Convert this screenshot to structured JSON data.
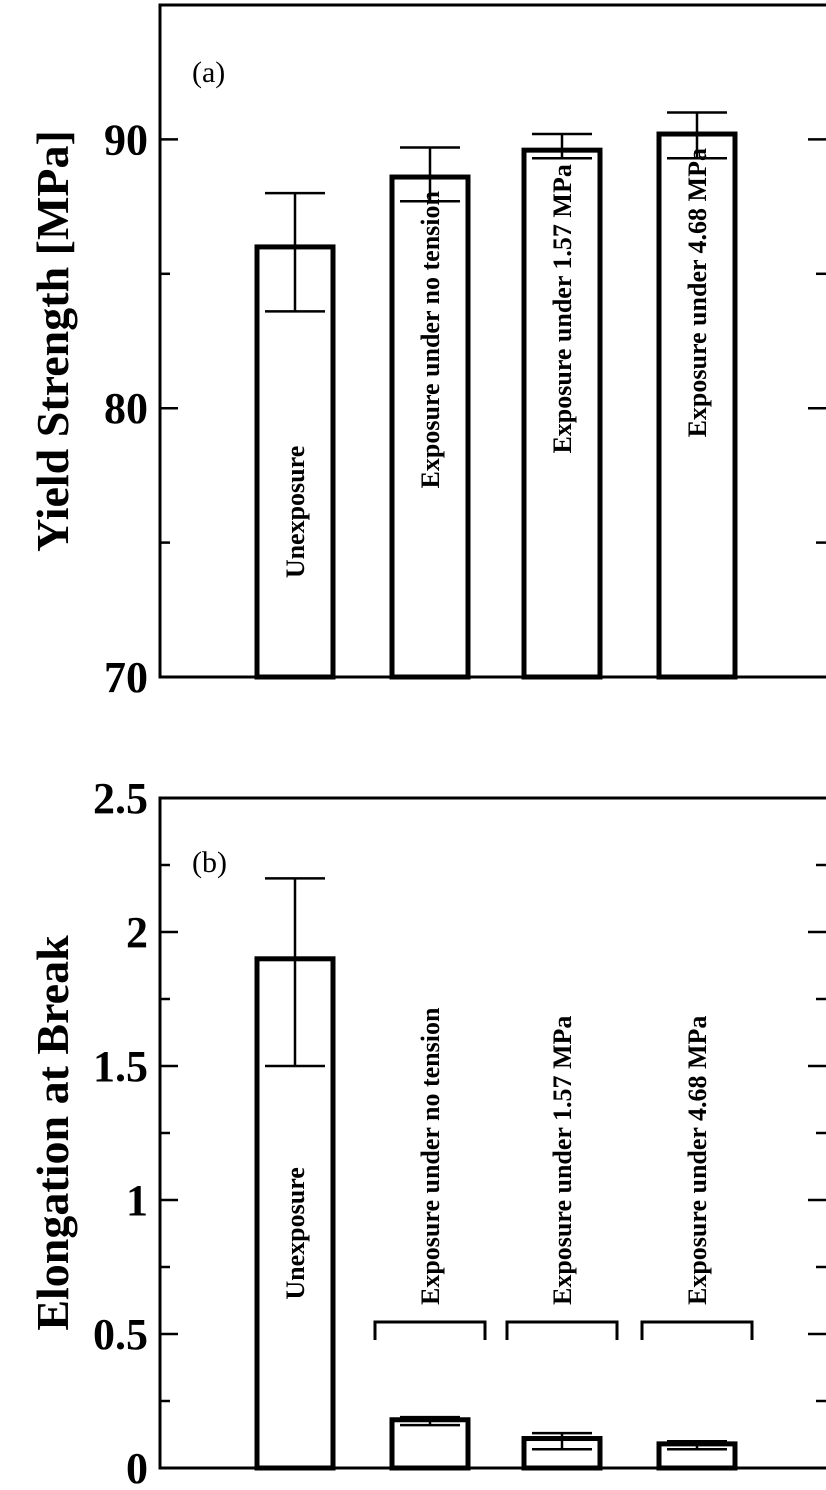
{
  "chart_data": [
    {
      "type": "bar",
      "panel_label": "(a)",
      "ylabel": "Yield Strength [MPa]",
      "ylim": [
        70,
        95
      ],
      "yticks": [
        "70",
        "80",
        "90"
      ],
      "categories": [
        "Unexposure",
        "Exposure under no tension",
        "Exposure under 1.57 MPa",
        "Exposure under 4.68 MPa"
      ],
      "values": [
        86.0,
        88.6,
        89.6,
        90.2
      ],
      "error_low": [
        83.6,
        87.7,
        89.3,
        89.3
      ],
      "error_high": [
        88.0,
        89.7,
        90.2,
        91.0
      ]
    },
    {
      "type": "bar",
      "panel_label": "(b)",
      "ylabel": "Elongation at Break",
      "ylim": [
        0,
        2.5
      ],
      "yticks": [
        "0",
        "0.5",
        "1",
        "1.5",
        "2",
        "2.5"
      ],
      "categories": [
        "Unexposure",
        "Exposure under no tension",
        "Exposure under 1.57 MPa",
        "Exposure under 4.68 MPa"
      ],
      "values": [
        1.9,
        0.18,
        0.11,
        0.09
      ],
      "error_low": [
        1.5,
        0.16,
        0.07,
        0.07
      ],
      "error_high": [
        2.2,
        0.19,
        0.13,
        0.1
      ]
    }
  ]
}
